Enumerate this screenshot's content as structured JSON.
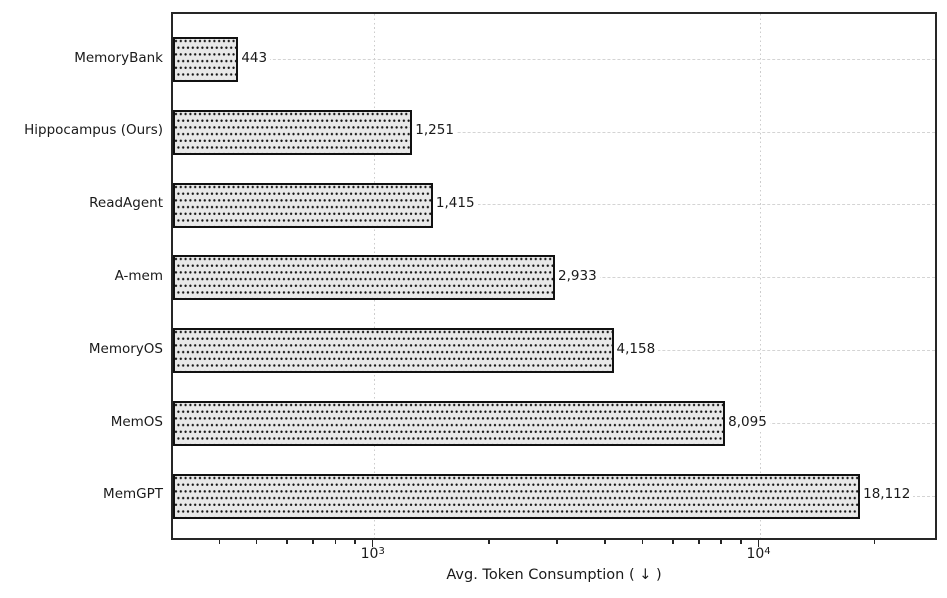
{
  "chart_data": {
    "type": "bar",
    "orientation": "horizontal",
    "title": "",
    "xlabel": "Avg. Token Consumption ( ↓ )",
    "ylabel": "",
    "xscale": "log",
    "xlim": [
      300,
      29000
    ],
    "categories": [
      "MemoryBank",
      "Hippocampus (Ours)",
      "ReadAgent",
      "A-mem",
      "MemoryOS",
      "MemOS",
      "MemGPT"
    ],
    "values": [
      443,
      1251,
      1415,
      2933,
      4158,
      8095,
      18112
    ],
    "value_labels": [
      "443",
      "1,251",
      "1,415",
      "2,933",
      "4,158",
      "8,095",
      "18,112"
    ],
    "x_major_ticks": [
      {
        "value": 1000,
        "label_base": "10",
        "label_exp": "3"
      },
      {
        "value": 10000,
        "label_base": "10",
        "label_exp": "4"
      }
    ],
    "x_minor_ticks": [
      400,
      500,
      600,
      700,
      800,
      900,
      2000,
      3000,
      4000,
      5000,
      6000,
      7000,
      8000,
      9000,
      20000
    ],
    "grid": {
      "horizontal": "dashed",
      "vertical": "dotted",
      "legend": "none"
    },
    "colors": {
      "background": "#ffffff",
      "spine": "#262626",
      "text": "#1a1a1a",
      "grid_h": "#d4d4d4",
      "grid_v": "#cccccc",
      "bar_fill": "#e8e8e8",
      "bar_border": "#111111",
      "hatch_dot": "#161616"
    },
    "hatch": "dots"
  }
}
